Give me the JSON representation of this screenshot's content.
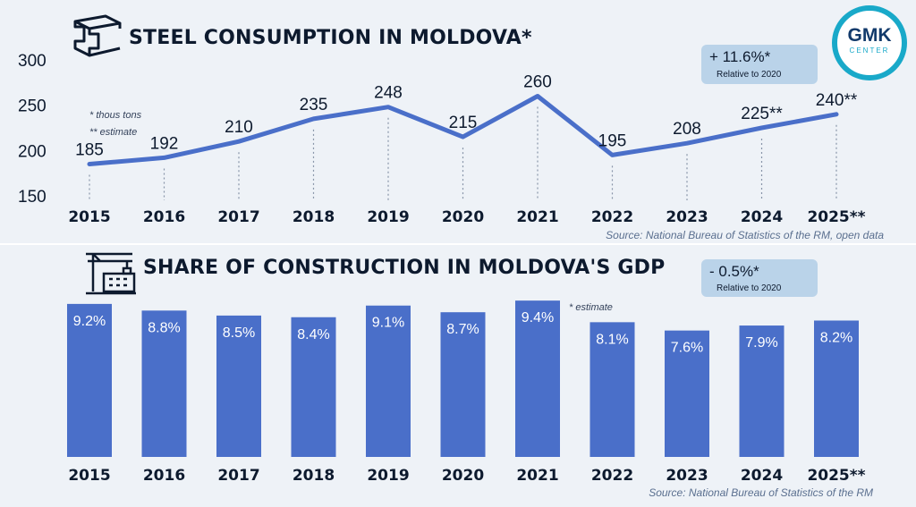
{
  "logo": {
    "line1": "GMK",
    "line2": "CENTER"
  },
  "top_panel": {
    "title": "STEEL CONSUMPTION IN MOLDOVA*",
    "notes": [
      "* thous tons",
      "** estimate"
    ],
    "badge": {
      "value": "+ 11.6%*",
      "caption": "Relative to 2020"
    },
    "source": "Source: National Bureau of Statistics of the RM, open data"
  },
  "bottom_panel": {
    "title": "SHARE OF CONSTRUCTION IN MOLDOVA'S GDP",
    "notes": [
      "* estimate"
    ],
    "badge": {
      "value": "- 0.5%*",
      "caption": "Relative to 2020"
    },
    "source": "Source: National Bureau of Statistics of the RM"
  },
  "colors": {
    "primary": "#4a6fc9",
    "title": "#0d1a2e",
    "accent": "#19a9c9",
    "badge": "#b0cee6"
  },
  "chart_data": [
    {
      "type": "line",
      "title": "STEEL CONSUMPTION IN MOLDOVA*",
      "categories": [
        "2015",
        "2016",
        "2017",
        "2018",
        "2019",
        "2020",
        "2021",
        "2022",
        "2023",
        "2024",
        "2025**"
      ],
      "values": [
        185,
        192,
        210,
        235,
        248,
        215,
        260,
        195,
        208,
        225,
        240
      ],
      "labels": [
        "185",
        "192",
        "210",
        "235",
        "248",
        "215",
        "260",
        "195",
        "208",
        "225**",
        "240**"
      ],
      "ylim": [
        150,
        300
      ],
      "yticks": [
        "150",
        "200",
        "250",
        "300"
      ],
      "grid": false
    },
    {
      "type": "bar",
      "title": "SHARE OF CONSTRUCTION IN MOLDOVA'S GDP",
      "categories": [
        "2015",
        "2016",
        "2017",
        "2018",
        "2019",
        "2020",
        "2021",
        "2022",
        "2023",
        "2024",
        "2025**"
      ],
      "values": [
        9.2,
        8.8,
        8.5,
        8.4,
        9.1,
        8.7,
        9.4,
        8.1,
        7.6,
        7.9,
        8.2
      ],
      "labels": [
        "9.2%",
        "8.8%",
        "8.5%",
        "8.4%",
        "9.1%",
        "8.7%",
        "9.4%",
        "8.1%",
        "7.6%",
        "7.9%",
        "8.2%"
      ],
      "grid": false
    }
  ]
}
